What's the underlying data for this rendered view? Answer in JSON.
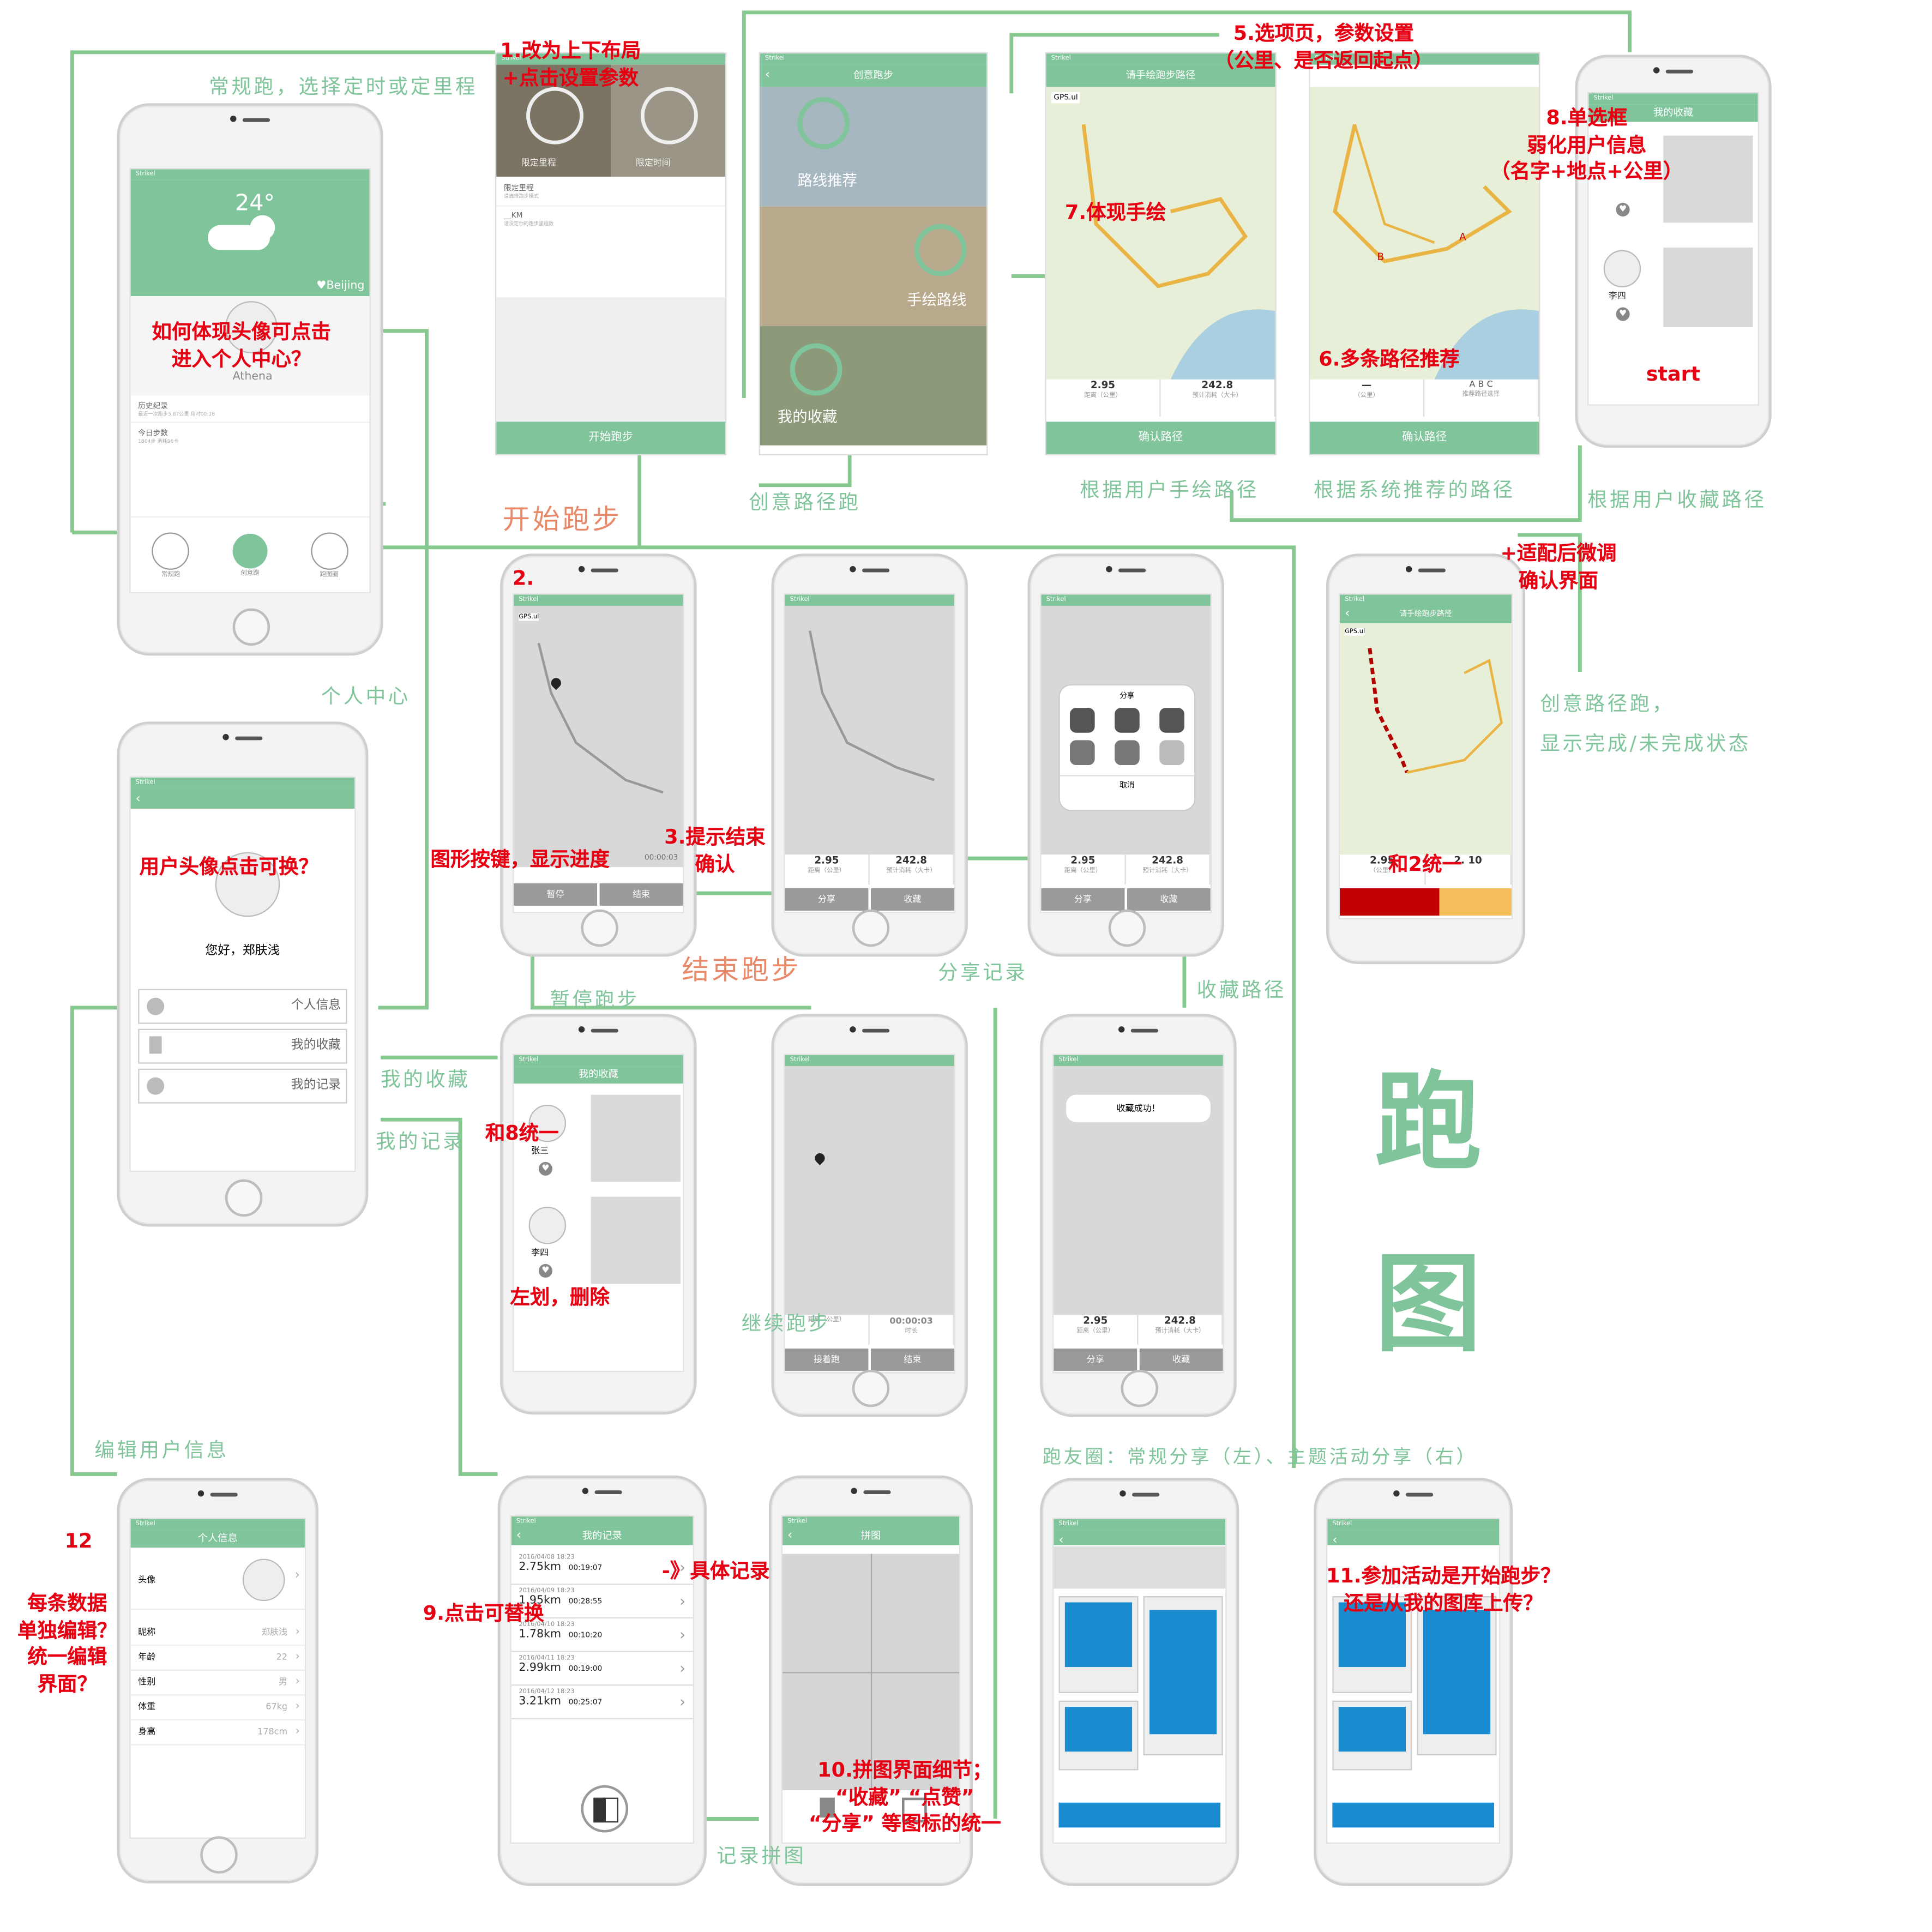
{
  "big_title": [
    "跑",
    "图"
  ],
  "phone_home": {
    "temp": "24°",
    "city": "♥Beijing",
    "name": "Athena",
    "history_title": "历史纪录",
    "history_sub": "最近一次跑步5.87公里 用时00:18",
    "today_title": "今日步数",
    "today_sub": "1804步 消耗96卡",
    "tabs": [
      "常规跑",
      "创意跑",
      "跑图圈"
    ]
  },
  "phone_settings": {
    "tile1": "限定里程",
    "tile2": "限定时间",
    "field1": "限定里程",
    "field1_sub": "请选择跑步模式",
    "field2": "__KM",
    "field2_sub": "请设定你的跑步里程数",
    "start": "开始跑步"
  },
  "phone_creative": {
    "title": "创意跑步",
    "row1": "路线推荐",
    "row2": "手绘路线",
    "row3": "我的收藏"
  },
  "phone_handdraw": {
    "title": "请手绘跑步路径",
    "gps": "GPS.ul",
    "s1": "2.95",
    "s1u": "距离（公里）",
    "s2": "242.8",
    "s2u": "预计消耗（大卡）",
    "confirm": "确认路径"
  },
  "phone_recommend": {
    "legend": [
      "A",
      "B",
      "C"
    ],
    "legend_sub": "推荐路径选择",
    "s1u": "（公里）",
    "confirm": "确认路径",
    "markA": "A",
    "markB": "B"
  },
  "phone_fav_top": {
    "title": "我的收藏",
    "user": "李四",
    "start": "start"
  },
  "phone_adjust": {
    "title": "请手绘跑步路径",
    "gps": "GPS.ul",
    "s1": "2.95",
    "remain": "2. 10"
  },
  "phone_running": {
    "gps": "GPS.ul",
    "timer": "00:00:03",
    "pause": "暂停",
    "end": "结束"
  },
  "phone_end": {
    "s1": "2.95",
    "s1u": "距离（公里）",
    "s2": "242.8",
    "s2u": "预计消耗（大卡）",
    "share": "分享",
    "fav": "收藏"
  },
  "phone_share": {
    "title": "分享",
    "cancel": "取消",
    "s1": "2.95",
    "s1u": "距离（公里）",
    "s2": "242.8",
    "s2u": "预计消耗（大卡）",
    "share": "分享",
    "fav": "收藏"
  },
  "phone_adjust_stats": {
    "s1u": "（公里）"
  },
  "phone_user": {
    "hello": "您好，郑肤浅",
    "items": [
      "个人信息",
      "我的收藏",
      "我的记录"
    ]
  },
  "phone_fav_list": {
    "title": "我的收藏",
    "users": [
      "张三",
      "李四"
    ]
  },
  "phone_paused": {
    "timer": "00:00:03",
    "timer_sub": "时长",
    "dist_sub": "距离（公里）",
    "resume": "接着跑",
    "end": "结束"
  },
  "phone_faved": {
    "toast": "收藏成功！",
    "s1": "2.95",
    "s1u": "距离（公里）",
    "s2": "242.8",
    "s2u": "预计消耗（大卡）",
    "share": "分享",
    "fav": "收藏"
  },
  "phone_edit": {
    "title": "个人信息",
    "avatar_label": "头像",
    "rows": [
      {
        "k": "昵称",
        "v": "郑肤浅"
      },
      {
        "k": "年龄",
        "v": "22"
      },
      {
        "k": "性别",
        "v": "男"
      },
      {
        "k": "体重",
        "v": "67kg"
      },
      {
        "k": "身高",
        "v": "178cm"
      }
    ]
  },
  "phone_records": {
    "title": "我的记录",
    "records": [
      {
        "date": "2016/04/08 18:23",
        "km": "2.75km",
        "time": "00:19:07"
      },
      {
        "date": "2016/04/09 18:23",
        "km": "1.95km",
        "time": "00:28:55"
      },
      {
        "date": "2016/04/10 18:23",
        "km": "1.78km",
        "time": "00:10:20"
      },
      {
        "date": "2016/04/11 18:23",
        "km": "2.99km",
        "time": "00:19:00"
      },
      {
        "date": "2016/04/12 18:23",
        "km": "3.21km",
        "time": "00:25:07"
      }
    ]
  },
  "phone_puzzle": {
    "title": "拼图"
  },
  "green_labels": {
    "l1": "常规跑，选择定时或定里程",
    "l2": "开始跑步",
    "l3": "创意路径跑",
    "l4": "根据用户手绘路径",
    "l5": "根据系统推荐的路径",
    "l6": "根据用户收藏路径",
    "l7": "个人中心",
    "l8": "结束跑步",
    "l9": "暂停跑步",
    "l10": "分享记录",
    "l11": "收藏路径",
    "l12": "我的收藏",
    "l13": "我的记录",
    "l14": "继续跑步",
    "l15": "编辑用户信息",
    "l16": "记录拼图",
    "l17": "跑友圈：常规分享（左）、主题活动分享（右）",
    "l18a": "创意路径跑，",
    "l18b": "显示完成/未完成状态"
  },
  "red_notes": {
    "n1a": "1.改为上下布局",
    "n1b": "+点击设置参数",
    "n2": "2.",
    "n3a": "3.提示结束",
    "n3b": "确认",
    "n5a": "5.选项页，参数设置",
    "n5b": "（公里、是否返回起点）",
    "n6": "6.多条路径推荐",
    "n7": "7.体现手绘",
    "n8a": "8.单选框",
    "n8b": "弱化用户信息",
    "n8c": "（名字+地点+公里）",
    "n9": "9.点击可替换",
    "n10a": "10.拼图界面细节；",
    "n10b": "“收藏”  “点赞”",
    "n10c": "“分享”  等图标的统一",
    "n11a": "11.参加活动是开始跑步？",
    "n11b": "还是从我的图库上传？",
    "n12": "12",
    "n12b": "每条数据",
    "n12c": "单独编辑？",
    "n12d": "统一编辑",
    "n12e": "界面？",
    "head_a": "如何体现头像可点击",
    "head_b": "进入个人中心？",
    "avatar_q": "用户头像点击可换？",
    "graph_btn": "图形按键，显示进度",
    "unify8": "和8统一",
    "swipe": "左划，删除",
    "unify2": "和2统一",
    "adjust_a": "+适配后微调",
    "adjust_b": "确认界面",
    "detail": "-》具体记录"
  }
}
